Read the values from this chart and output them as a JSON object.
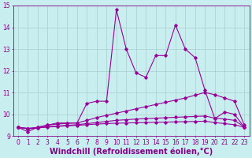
{
  "title": "",
  "xlabel": "Windchill (Refroidissement éolien,°C)",
  "xlim": [
    -0.5,
    23.5
  ],
  "ylim": [
    9,
    15
  ],
  "yticks": [
    9,
    10,
    11,
    12,
    13,
    14,
    15
  ],
  "xticks": [
    0,
    1,
    2,
    3,
    4,
    5,
    6,
    7,
    8,
    9,
    10,
    11,
    12,
    13,
    14,
    15,
    16,
    17,
    18,
    19,
    20,
    21,
    22,
    23
  ],
  "bg_color": "#c8eef0",
  "line_color": "#990099",
  "grid_color": "#aacccc",
  "series": {
    "temp": [
      9.4,
      9.2,
      9.4,
      9.5,
      9.6,
      9.6,
      9.6,
      10.5,
      10.6,
      10.6,
      14.8,
      13.0,
      11.9,
      11.7,
      12.7,
      12.7,
      14.1,
      13.0,
      12.6,
      11.1,
      9.8,
      10.1,
      10.0,
      9.4
    ],
    "wind1": [
      9.4,
      9.35,
      9.4,
      9.5,
      9.55,
      9.58,
      9.6,
      9.72,
      9.85,
      9.95,
      10.05,
      10.15,
      10.25,
      10.35,
      10.45,
      10.55,
      10.65,
      10.75,
      10.88,
      11.0,
      10.9,
      10.75,
      10.6,
      9.5
    ],
    "wind2": [
      9.4,
      9.35,
      9.38,
      9.43,
      9.46,
      9.49,
      9.52,
      9.57,
      9.62,
      9.67,
      9.72,
      9.75,
      9.78,
      9.8,
      9.82,
      9.84,
      9.86,
      9.88,
      9.9,
      9.92,
      9.82,
      9.78,
      9.72,
      9.42
    ],
    "wind3": [
      9.4,
      9.33,
      9.37,
      9.41,
      9.44,
      9.47,
      9.49,
      9.52,
      9.55,
      9.57,
      9.59,
      9.6,
      9.61,
      9.62,
      9.63,
      9.64,
      9.65,
      9.66,
      9.67,
      9.68,
      9.62,
      9.57,
      9.52,
      9.4
    ]
  },
  "figsize": [
    3.2,
    2.0
  ],
  "dpi": 100,
  "font_color": "#880088",
  "tick_fontsize": 5.5,
  "xlabel_fontsize": 7.0
}
